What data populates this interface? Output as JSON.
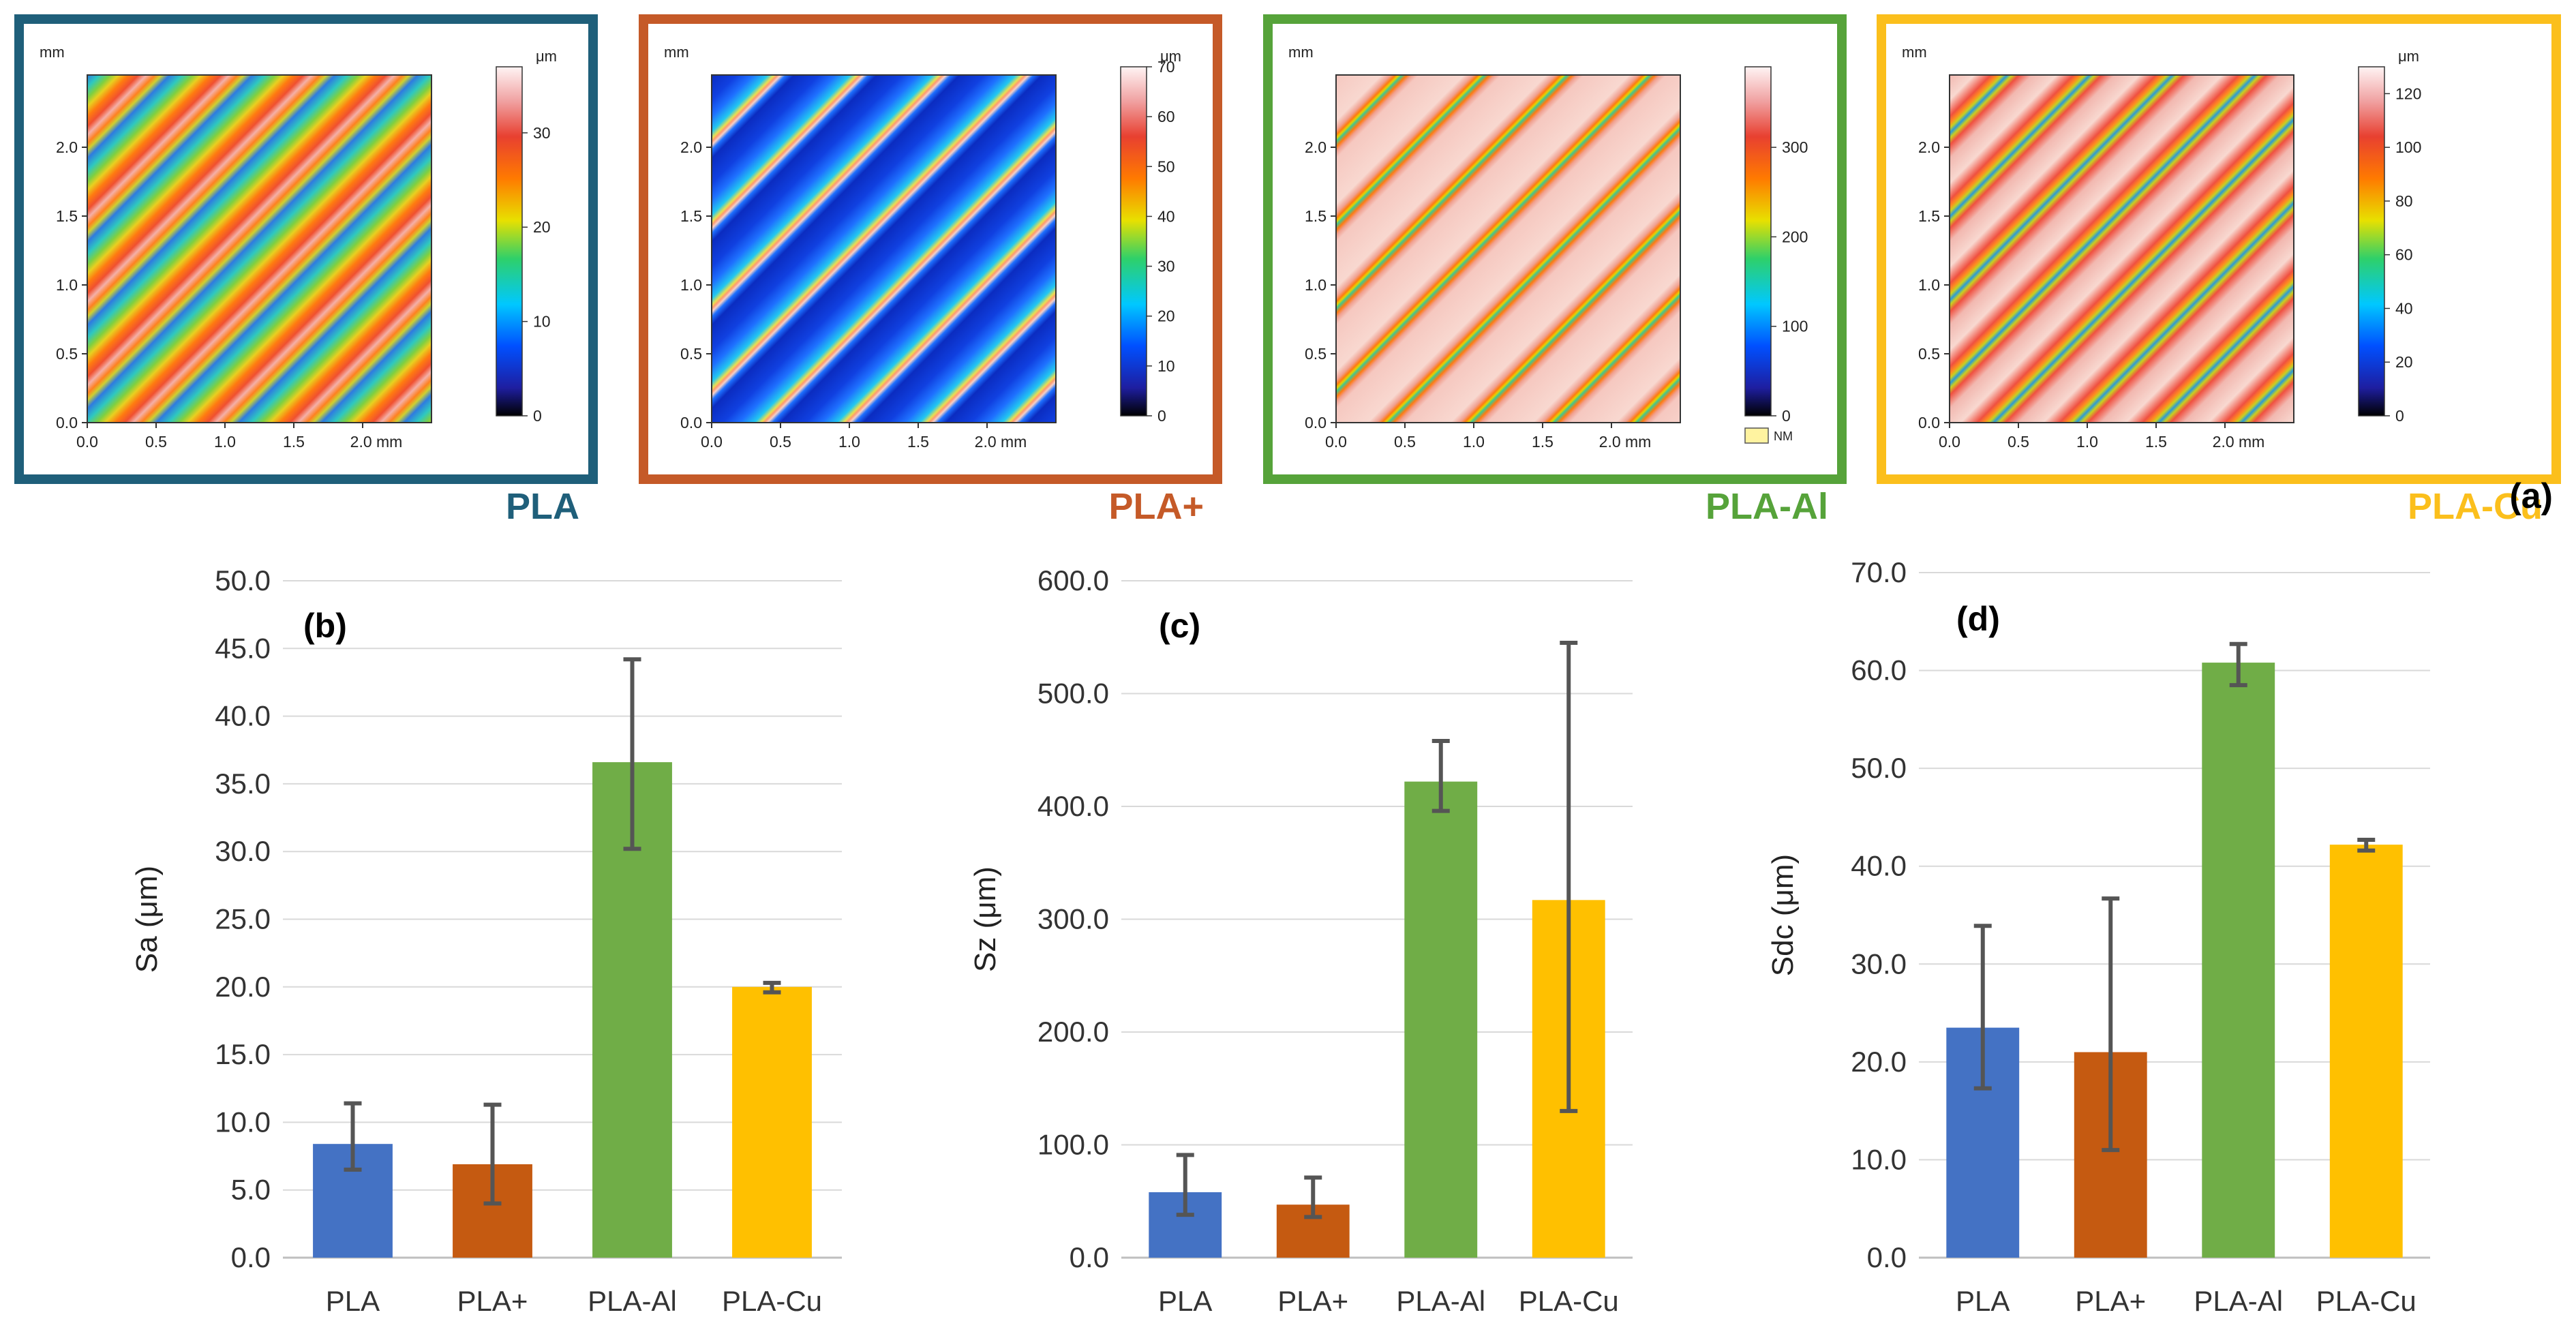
{
  "figure_label": "(a)",
  "colors": {
    "PLA": "#4472C4",
    "PLA+": "#C55A11",
    "PLA-Al": "#70AD47",
    "PLA-Cu": "#FFC000",
    "frame_PLA": "#1F5F7A",
    "frame_PLA+": "#C55A28",
    "frame_PLA-Al": "#56A33A",
    "frame_PLA-Cu": "#FBBF1C",
    "error_bar": "#555555",
    "grid": "#D9D9D9"
  },
  "maps": [
    {
      "label": "PLA",
      "y_unit": "mm",
      "x_ticks": [
        "0.0",
        "0.5",
        "1.0",
        "1.5",
        "2.0 mm"
      ],
      "y_ticks": [
        "0.0",
        "0.5",
        "1.0",
        "1.5",
        "2.0"
      ],
      "colorbar_unit": "μm",
      "colorbar_ticks": [
        "0",
        "10",
        "20",
        "30"
      ],
      "colorbar_max": 37,
      "note": ""
    },
    {
      "label": "PLA+",
      "y_unit": "mm",
      "x_ticks": [
        "0.0",
        "0.5",
        "1.0",
        "1.5",
        "2.0 mm"
      ],
      "y_ticks": [
        "0.0",
        "0.5",
        "1.0",
        "1.5",
        "2.0"
      ],
      "colorbar_unit": "μm",
      "colorbar_ticks": [
        "0",
        "10",
        "20",
        "30",
        "40",
        "50",
        "60",
        "70"
      ],
      "colorbar_max": 70,
      "note": ""
    },
    {
      "label": "PLA-Al",
      "y_unit": "mm",
      "x_ticks": [
        "0.0",
        "0.5",
        "1.0",
        "1.5",
        "2.0 mm"
      ],
      "y_ticks": [
        "0.0",
        "0.5",
        "1.0",
        "1.5",
        "2.0"
      ],
      "colorbar_unit": "",
      "colorbar_ticks": [
        "0",
        "100",
        "200",
        "300"
      ],
      "colorbar_max": 390,
      "note": "NM"
    },
    {
      "label": "PLA-Cu",
      "y_unit": "mm",
      "x_ticks": [
        "0.0",
        "0.5",
        "1.0",
        "1.5",
        "2.0 mm"
      ],
      "y_ticks": [
        "0.0",
        "0.5",
        "1.0",
        "1.5",
        "2.0"
      ],
      "colorbar_unit": "μm",
      "colorbar_ticks": [
        "0",
        "20",
        "40",
        "60",
        "80",
        "100",
        "120"
      ],
      "colorbar_max": 130,
      "note": ""
    }
  ],
  "chart_data": [
    {
      "type": "bar",
      "panel": "(b)",
      "ylabel": "Sa (μm)",
      "categories": [
        "PLA",
        "PLA+",
        "PLA-Al",
        "PLA-Cu"
      ],
      "values": [
        8.4,
        6.9,
        36.6,
        20.0
      ],
      "error_low": [
        6.5,
        4.0,
        30.2,
        19.6
      ],
      "error_high": [
        11.4,
        11.3,
        44.2,
        20.3
      ],
      "ylim": [
        0,
        50
      ],
      "yticks": [
        "0.0",
        "5.0",
        "10.0",
        "15.0",
        "20.0",
        "25.0",
        "30.0",
        "35.0",
        "40.0",
        "45.0",
        "50.0"
      ],
      "grid": true
    },
    {
      "type": "bar",
      "panel": "(c)",
      "ylabel": "Sz (μm)",
      "categories": [
        "PLA",
        "PLA+",
        "PLA-Al",
        "PLA-Cu"
      ],
      "values": [
        58,
        47,
        422,
        317
      ],
      "error_low": [
        38,
        36,
        396,
        130
      ],
      "error_high": [
        91,
        71,
        458,
        545
      ],
      "ylim": [
        0,
        600
      ],
      "yticks": [
        "0.0",
        "100.0",
        "200.0",
        "300.0",
        "400.0",
        "500.0",
        "600.0"
      ],
      "grid": true
    },
    {
      "type": "bar",
      "panel": "(d)",
      "ylabel": "Sdc (μm)",
      "categories": [
        "PLA",
        "PLA+",
        "PLA-Al",
        "PLA-Cu"
      ],
      "values": [
        23.5,
        21.0,
        60.8,
        42.2
      ],
      "error_low": [
        17.3,
        11.0,
        58.5,
        41.6
      ],
      "error_high": [
        33.9,
        36.7,
        62.7,
        42.7
      ],
      "ylim": [
        0,
        70
      ],
      "yticks": [
        "0.0",
        "10.0",
        "20.0",
        "30.0",
        "40.0",
        "50.0",
        "60.0",
        "70.0"
      ],
      "grid": true
    }
  ]
}
